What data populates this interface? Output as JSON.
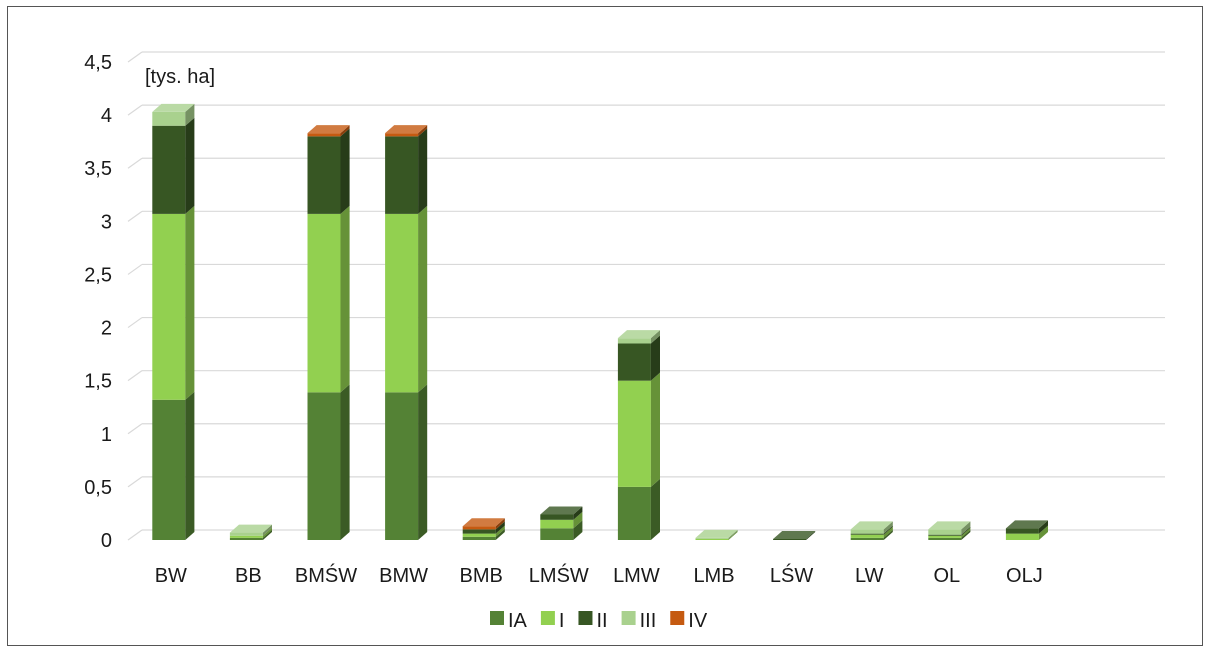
{
  "chart_data": {
    "type": "bar",
    "stacked": true,
    "three_d": true,
    "unit_label": "[tys. ha]",
    "categories": [
      "BW",
      "BB",
      "BMŚW",
      "BMW",
      "BMB",
      "LMŚW",
      "LMW",
      "LMB",
      "LŚW",
      "LW",
      "OL",
      "OLJ"
    ],
    "series": [
      {
        "name": "IA",
        "color": "#548235",
        "values": [
          1.32,
          0.02,
          1.39,
          1.39,
          0.03,
          0.11,
          0.5,
          0.0,
          0.0,
          0.02,
          0.02,
          0.0
        ]
      },
      {
        "name": "I",
        "color": "#92D050",
        "values": [
          1.75,
          0.02,
          1.68,
          1.68,
          0.03,
          0.08,
          1.0,
          0.01,
          0.0,
          0.03,
          0.02,
          0.06
        ]
      },
      {
        "name": "II",
        "color": "#375623",
        "values": [
          0.83,
          0.0,
          0.73,
          0.73,
          0.04,
          0.05,
          0.35,
          0.0,
          0.01,
          0.01,
          0.01,
          0.05
        ]
      },
      {
        "name": "III",
        "color": "#A9D18E",
        "values": [
          0.13,
          0.03,
          0.0,
          0.0,
          0.0,
          0.0,
          0.05,
          0.01,
          0.0,
          0.04,
          0.05,
          0.0
        ]
      },
      {
        "name": "IV",
        "color": "#C55A11",
        "values": [
          0.0,
          0.0,
          0.03,
          0.03,
          0.03,
          0.0,
          0.0,
          0.0,
          0.0,
          0.0,
          0.0,
          0.0
        ]
      }
    ],
    "y_ticks": [
      "0",
      "0,5",
      "1",
      "1,5",
      "2",
      "2,5",
      "3",
      "3,5",
      "4",
      "4,5"
    ],
    "ylim": [
      0,
      4.5
    ],
    "grid": true,
    "legend": "bottom"
  }
}
